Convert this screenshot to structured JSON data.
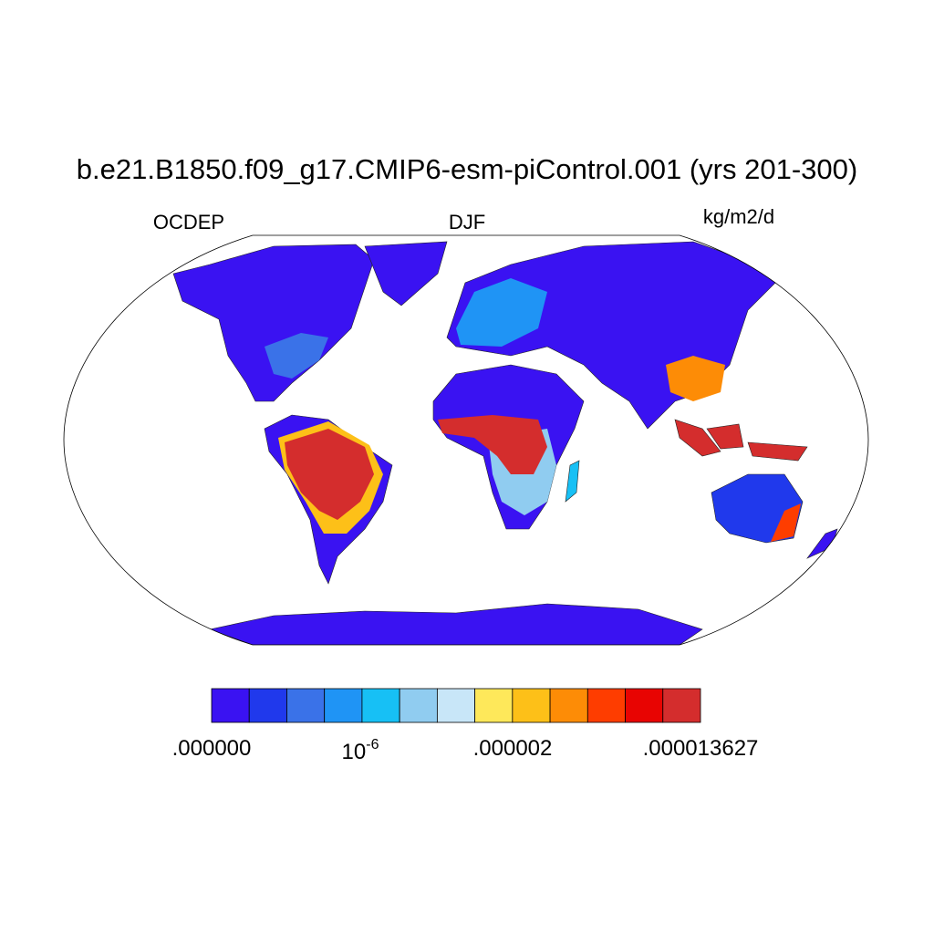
{
  "header": {
    "title": "b.e21.B1850.f09_g17.CMIP6-esm-piControl.001 (yrs 201-300)",
    "left_label": "OCDEP",
    "center_label": "DJF",
    "right_label": "kg/m2/d"
  },
  "colorbar": {
    "colors": [
      "#3a12f2",
      "#2039ec",
      "#3a72e8",
      "#1f94f5",
      "#17c0f5",
      "#90ccf0",
      "#c8e6f8",
      "#fee85a",
      "#fdc018",
      "#fd8c06",
      "#fe3d00",
      "#e80402",
      "#d42d2d"
    ],
    "label_min": ".000000",
    "label_mid_base": "10",
    "label_mid_exponent": "-6",
    "label_mid2": ".000002",
    "label_max": ".000013627"
  }
}
